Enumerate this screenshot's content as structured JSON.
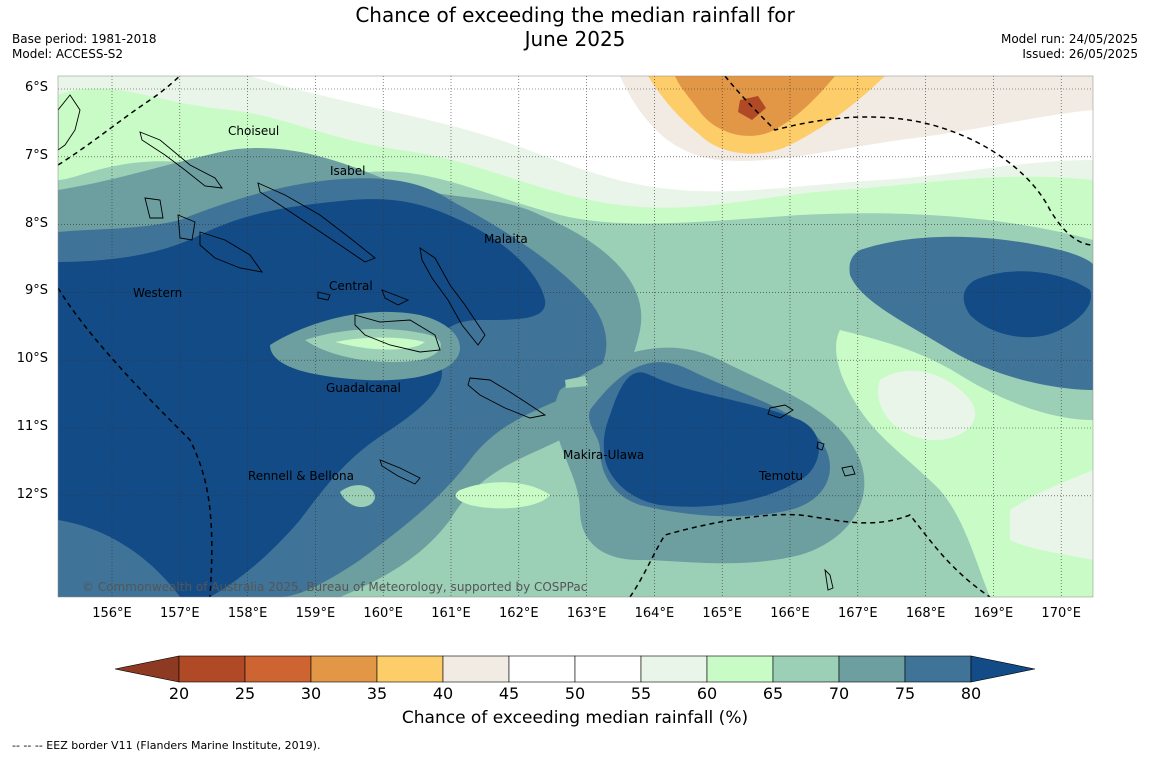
{
  "title_line1": "Chance of exceeding the median rainfall for",
  "title_line2": "June 2025",
  "base_period": "Base period: 1981-2018",
  "model": "Model: ACCESS-S2",
  "model_run": "Model run: 24/05/2025",
  "issued": "Issued: 26/05/2025",
  "x_ticks": [
    "156°E",
    "157°E",
    "158°E",
    "159°E",
    "160°E",
    "161°E",
    "162°E",
    "163°E",
    "164°E",
    "165°E",
    "166°E",
    "167°E",
    "168°E",
    "169°E",
    "170°E"
  ],
  "y_ticks": [
    "6°S",
    "7°S",
    "8°S",
    "9°S",
    "10°S",
    "11°S",
    "12°S"
  ],
  "provinces": [
    "Choiseul",
    "Isabel",
    "Malaita",
    "Central",
    "Western",
    "Guadalcanal",
    "Makira-Ulawa",
    "Rennell & Bellona",
    "Temotu"
  ],
  "copyright": "© Commonwealth of Australia 2025, Bureau of Meteorology, supported by COSPPac",
  "colorbar": {
    "label": "Chance of exceeding median rainfall (%)",
    "ticks": [
      "20",
      "25",
      "30",
      "35",
      "40",
      "45",
      "50",
      "55",
      "60",
      "65",
      "70",
      "75",
      "80"
    ],
    "colors": [
      "#8e3a22",
      "#b04a26",
      "#cd6432",
      "#e29747",
      "#fdcd6a",
      "#f1ebe4",
      "#ffffff",
      "#ffffff",
      "#e9f5e8",
      "#c9fbc7",
      "#9bcfb6",
      "#6d9ea0",
      "#3f7498",
      "#124b86"
    ]
  },
  "footer": "-- -- -- EEZ border V11 (Flanders Marine Institute, 2019)."
}
